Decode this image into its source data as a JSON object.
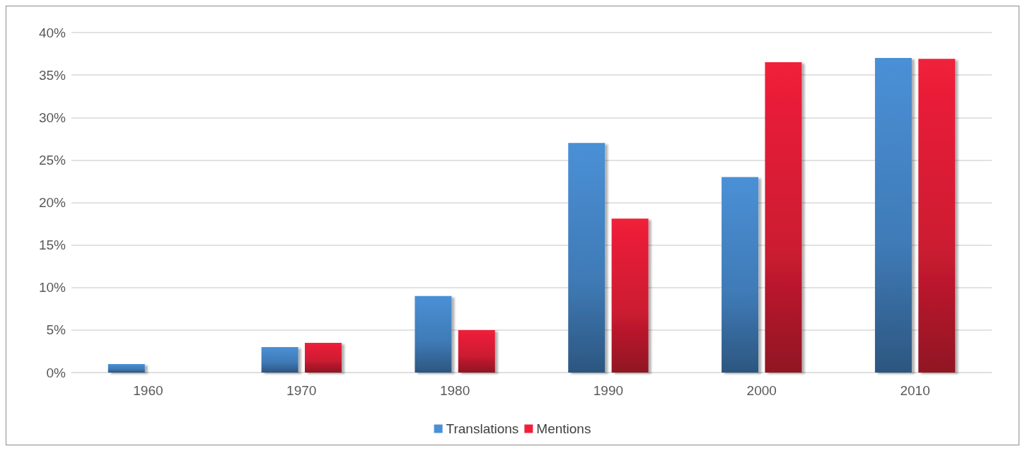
{
  "chart_data": {
    "type": "bar",
    "categories": [
      "1960",
      "1970",
      "1980",
      "1990",
      "2000",
      "2010"
    ],
    "series": [
      {
        "name": "Translations",
        "color": "#4a90d6",
        "values": [
          1,
          3,
          9,
          27,
          23,
          37
        ]
      },
      {
        "name": "Mentions",
        "color": "#f0203a",
        "values": [
          0,
          3.5,
          5,
          18.1,
          36.5,
          36.9
        ]
      }
    ],
    "ylim": [
      0,
      40
    ],
    "yticks": [
      {
        "value": 0,
        "label": "0%"
      },
      {
        "value": 5,
        "label": "5%"
      },
      {
        "value": 10,
        "label": "10%"
      },
      {
        "value": 15,
        "label": "15%"
      },
      {
        "value": 20,
        "label": "20%"
      },
      {
        "value": 25,
        "label": "25%"
      },
      {
        "value": 30,
        "label": "30%"
      },
      {
        "value": 35,
        "label": "35%"
      },
      {
        "value": 40,
        "label": "40%"
      }
    ],
    "grid": "y",
    "legend": "bottom"
  }
}
